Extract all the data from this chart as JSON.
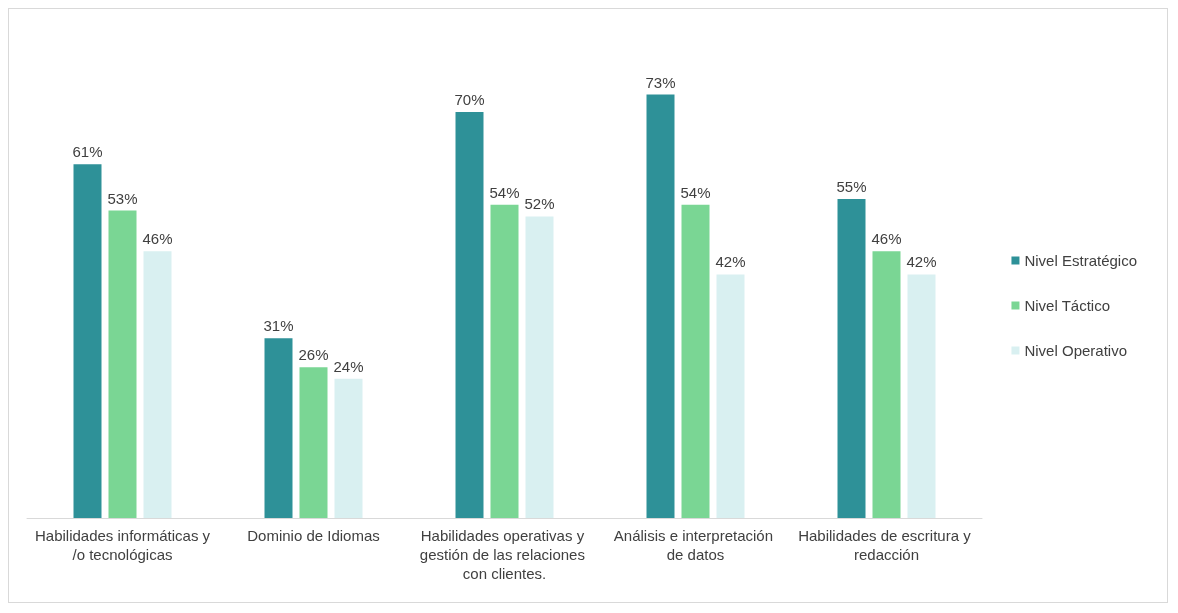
{
  "chart_data": {
    "type": "bar",
    "categories": [
      "Habilidades informáticas y/o tecnológicas",
      "Dominio de Idiomas",
      "Habilidades operativas y gestión de las relaciones con clientes.",
      "Análisis e interpretación de datos",
      "Habilidades de escritura y redacción"
    ],
    "series": [
      {
        "name": "Nivel Estratégico",
        "color": "#2e9198",
        "values": [
          61,
          31,
          70,
          73,
          55
        ],
        "value_labels": [
          "61%",
          "31%",
          "70%",
          "73%",
          "55%"
        ]
      },
      {
        "name": "Nivel Táctico",
        "color": "#7ad694",
        "values": [
          53,
          26,
          54,
          54,
          46
        ],
        "value_labels": [
          "53%",
          "26%",
          "54%",
          "54%",
          "46%"
        ]
      },
      {
        "name": "Nivel Operativo",
        "color": "#d9f0f1",
        "values": [
          46,
          24,
          52,
          42,
          42
        ],
        "value_labels": [
          "46%",
          "24%",
          "52%",
          "42%",
          "42%"
        ]
      }
    ],
    "grid": false,
    "legend": "right"
  }
}
